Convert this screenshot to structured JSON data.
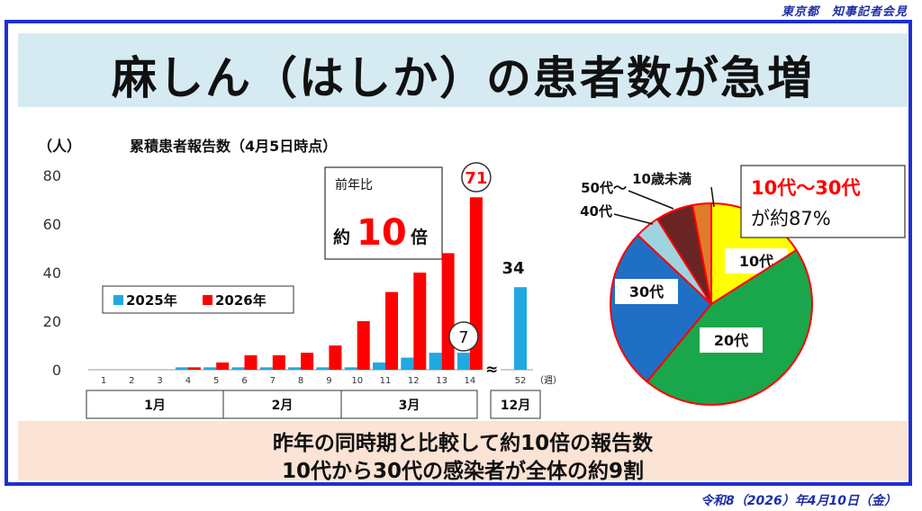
{
  "header": {
    "org": "東京都　知事記者会見"
  },
  "title": "麻しん（はしか）の患者数が急増",
  "chart_data": [
    {
      "type": "bar",
      "title": "累積患者報告数（4月5日時点）",
      "ylabel": "（人）",
      "xlabel": "（週）",
      "ylim": [
        0,
        80
      ],
      "yticks": [
        0,
        20,
        40,
        60,
        80
      ],
      "categories": [
        "1",
        "2",
        "3",
        "4",
        "5",
        "6",
        "7",
        "8",
        "9",
        "10",
        "11",
        "12",
        "13",
        "14",
        "52"
      ],
      "series": [
        {
          "name": "2025年",
          "color": "#22a8e0",
          "values": [
            0,
            0,
            0,
            1,
            1,
            1,
            1,
            1,
            1,
            1,
            3,
            5,
            7,
            7,
            34
          ]
        },
        {
          "name": "2026年",
          "color": "#ff0000",
          "values": [
            0,
            0,
            0,
            1,
            3,
            6,
            6,
            7,
            10,
            20,
            32,
            40,
            48,
            71,
            null
          ]
        }
      ],
      "month_labels": [
        "1月",
        "2月",
        "3月",
        "12月"
      ],
      "annotations": {
        "circled_2026": "71",
        "circled_2025": "7",
        "label_52": "34"
      },
      "ratio_box": {
        "label": "前年比",
        "prefix": "約",
        "value": "10",
        "suffix": "倍"
      }
    },
    {
      "type": "pie",
      "slices": [
        {
          "label": "10代",
          "value": 16,
          "color": "#ffff00"
        },
        {
          "label": "20代",
          "value": 45,
          "color": "#1aa64a"
        },
        {
          "label": "30代",
          "value": 26,
          "color": "#1f6fc5"
        },
        {
          "label": "40代",
          "value": 4,
          "color": "#9fd3e0"
        },
        {
          "label": "50代～",
          "value": 6,
          "color": "#6b2424"
        },
        {
          "label": "10歳未満",
          "value": 3,
          "color": "#e07b2a"
        }
      ],
      "callout": {
        "line1": "10代～30代",
        "line2": "が約87%"
      }
    }
  ],
  "summary": {
    "line1": "昨年の同時期と比較して約10倍の報告数",
    "line2": "10代から30代の感染者が全体の約9割"
  },
  "footer": {
    "date": "令和8（2026）年4月10日（金）"
  }
}
